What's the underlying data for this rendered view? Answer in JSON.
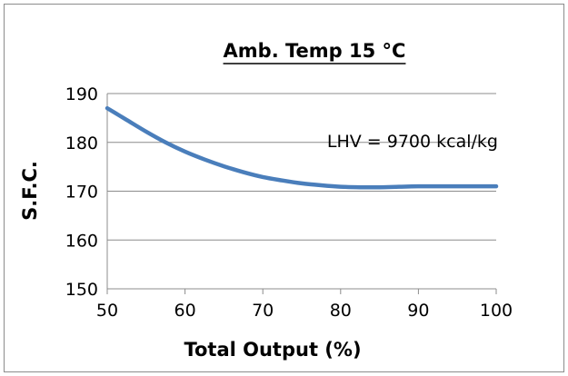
{
  "chart_data": {
    "type": "line",
    "title": "Amb. Temp 15 °C",
    "xlabel": "Total Output (%)",
    "ylabel": "S.F.C.",
    "xlim": [
      50,
      100
    ],
    "ylim": [
      150,
      190
    ],
    "x_ticks": [
      50,
      60,
      70,
      80,
      90,
      100
    ],
    "y_ticks": [
      150,
      160,
      170,
      180,
      190
    ],
    "grid": "horizontal",
    "annotation": "LHV = 9700 kcal/kg",
    "series": [
      {
        "color": "#4a7ebb",
        "x": [
          50,
          52.5,
          55,
          57.5,
          60,
          62.5,
          65,
          67.5,
          70,
          72.5,
          75,
          77.5,
          80,
          82.5,
          85,
          87.5,
          90,
          95,
          100
        ],
        "y": [
          187,
          184.6,
          182.2,
          180,
          178.1,
          176.5,
          175.1,
          173.9,
          172.9,
          172.2,
          171.6,
          171.2,
          170.9,
          170.8,
          170.8,
          170.9,
          171,
          171,
          171
        ]
      }
    ]
  }
}
